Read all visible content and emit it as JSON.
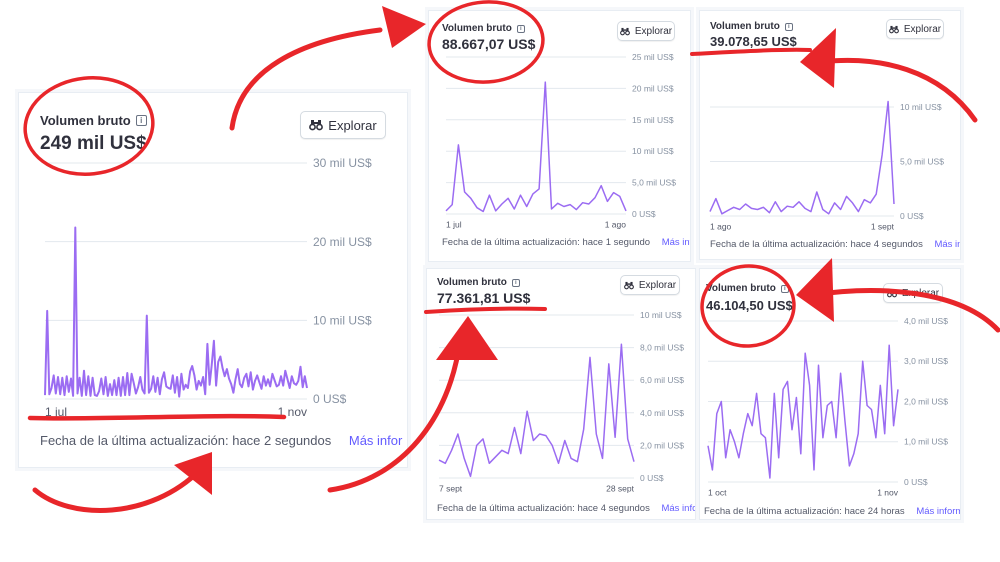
{
  "colors": {
    "line": "#9b6cf2",
    "grid": "#e3e8ee",
    "axis_text": "#8792a2",
    "annotation": "#e8262a",
    "link": "#635bff"
  },
  "icons": {
    "info": "info-icon",
    "explore": "binoculars-icon"
  },
  "cards": [
    {
      "title": "Volumen bruto",
      "value": "249 mil US$",
      "explore_label": "Explorar",
      "footer_text": "Fecha de la última actualización: hace 2 segundos",
      "footer_link": "Más infor"
    },
    {
      "title": "Volumen bruto",
      "value": "88.667,07 US$",
      "explore_label": "Explorar",
      "footer_text": "Fecha de la última actualización: hace 1 segundo",
      "footer_link": "Más infor"
    },
    {
      "title": "Volumen bruto",
      "value": "39.078,65 US$",
      "explore_label": "Explorar",
      "footer_text": "Fecha de la última actualización: hace 4 segundos",
      "footer_link": "Más infor"
    },
    {
      "title": "Volumen bruto",
      "value": "77.361,81 US$",
      "explore_label": "Explorar",
      "footer_text": "Fecha de la última actualización: hace 4 segundos",
      "footer_link": "Más info"
    },
    {
      "title": "Volumen bruto",
      "value": "46.104,50 US$",
      "explore_label": "Explorar",
      "footer_text": "Fecha de la última actualización: hace 24 horas",
      "footer_link": "Más informa"
    }
  ],
  "chart_data": [
    {
      "type": "line",
      "ylim": [
        0,
        30000
      ],
      "y_ticks": [
        0,
        10000,
        20000,
        30000
      ],
      "y_tick_labels": [
        "0 US$",
        "10 mil US$",
        "20 mil US$",
        "30 mil US$"
      ],
      "x_tick_labels": [
        "1 jul",
        "1 nov"
      ],
      "grid": true,
      "values": [
        500,
        11200,
        600,
        1400,
        3000,
        700,
        2800,
        600,
        2700,
        500,
        2900,
        900,
        2600,
        400,
        21800,
        700,
        2700,
        400,
        3600,
        500,
        2900,
        400,
        2700,
        500,
        400,
        1000,
        2600,
        600,
        2800,
        400,
        1900,
        500,
        2400,
        500,
        2700,
        400,
        2800,
        500,
        3300,
        500,
        3200,
        2000,
        700,
        1500,
        2800,
        1200,
        700,
        10600,
        800,
        1300,
        2900,
        900,
        2700,
        600,
        2500,
        3400,
        1600,
        1400,
        1300,
        3000,
        800,
        2800,
        300,
        3200,
        1200,
        1800,
        1400,
        3500,
        4200,
        3000,
        1200,
        2300,
        1700,
        2800,
        600,
        7000,
        1800,
        4300,
        7400,
        1700,
        4700,
        5400,
        3900,
        2900,
        3800,
        2600,
        1900,
        800,
        2500,
        3800,
        1900,
        1500,
        2700,
        3200,
        1600,
        3400,
        1200,
        2300,
        3000,
        2100,
        1300,
        2900,
        1700,
        2500,
        1600,
        3200,
        2400,
        1600,
        1800,
        2900,
        1700,
        3600,
        2500,
        1400,
        2900,
        2000,
        1800,
        2300,
        4100,
        1500,
        2900,
        1400
      ]
    },
    {
      "type": "line",
      "ylim": [
        0,
        25000
      ],
      "y_ticks": [
        0,
        5000,
        10000,
        15000,
        20000,
        25000
      ],
      "y_tick_labels": [
        "0 US$",
        "5,0 mil US$",
        "10 mil US$",
        "15 mil US$",
        "20 mil US$",
        "25 mil US$"
      ],
      "x_tick_labels": [
        "1 jul",
        "1 ago"
      ],
      "grid": true,
      "values": [
        500,
        1500,
        11000,
        3500,
        2500,
        1000,
        400,
        3000,
        500,
        1600,
        2500,
        800,
        3000,
        1200,
        3200,
        4000,
        21000,
        800,
        1700,
        1200,
        1500,
        700,
        1800,
        1600,
        2600,
        4500,
        2000,
        3400,
        2800,
        500
      ]
    },
    {
      "type": "line",
      "ylim": [
        0,
        10000
      ],
      "y_ticks": [
        0,
        5000,
        10000
      ],
      "y_tick_labels": [
        "0 US$",
        "5,0 mil US$",
        "10 mil US$"
      ],
      "x_tick_labels": [
        "1 ago",
        "1 sept"
      ],
      "grid": true,
      "values": [
        400,
        1600,
        200,
        500,
        800,
        600,
        1100,
        700,
        600,
        800,
        300,
        1300,
        400,
        900,
        800,
        1300,
        700,
        400,
        2200,
        600,
        200,
        1200,
        600,
        1800,
        1200,
        400,
        1500,
        1200,
        2000,
        5600,
        10500,
        1100
      ]
    },
    {
      "type": "line",
      "ylim": [
        0,
        10000
      ],
      "y_ticks": [
        0,
        2000,
        4000,
        6000,
        8000,
        10000
      ],
      "y_tick_labels": [
        "0 US$",
        "2,0 mil US$",
        "4,0 mil US$",
        "6,0 mil US$",
        "8,0 mil US$",
        "10 mil US$"
      ],
      "x_tick_labels": [
        "7 sept",
        "28 sept"
      ],
      "grid": true,
      "values": [
        1100,
        900,
        1700,
        2700,
        1200,
        100,
        2000,
        2400,
        900,
        1300,
        1700,
        1500,
        3100,
        1500,
        4100,
        2300,
        2700,
        2600,
        2000,
        900,
        2300,
        1200,
        1000,
        3000,
        7400,
        2700,
        1200,
        7000,
        2500,
        8200,
        2400,
        1000
      ]
    },
    {
      "type": "line",
      "ylim": [
        0,
        4000
      ],
      "y_ticks": [
        0,
        1000,
        2000,
        3000,
        4000
      ],
      "y_tick_labels": [
        "0 US$",
        "1,0 mil US$",
        "2,0 mil US$",
        "3,0 mil US$",
        "4,0 mil US$"
      ],
      "x_tick_labels": [
        "1 oct",
        "1 nov"
      ],
      "grid": true,
      "values": [
        900,
        300,
        1700,
        2000,
        600,
        1300,
        1000,
        600,
        1200,
        1700,
        1400,
        2200,
        1200,
        1100,
        100,
        2200,
        600,
        2300,
        2500,
        1300,
        2100,
        700,
        3200,
        2400,
        300,
        2900,
        1100,
        1900,
        2000,
        1100,
        2700,
        1500,
        400,
        700,
        1200,
        3000,
        1900,
        1800,
        1100,
        2400,
        1200,
        3400,
        1400,
        2300
      ]
    }
  ]
}
